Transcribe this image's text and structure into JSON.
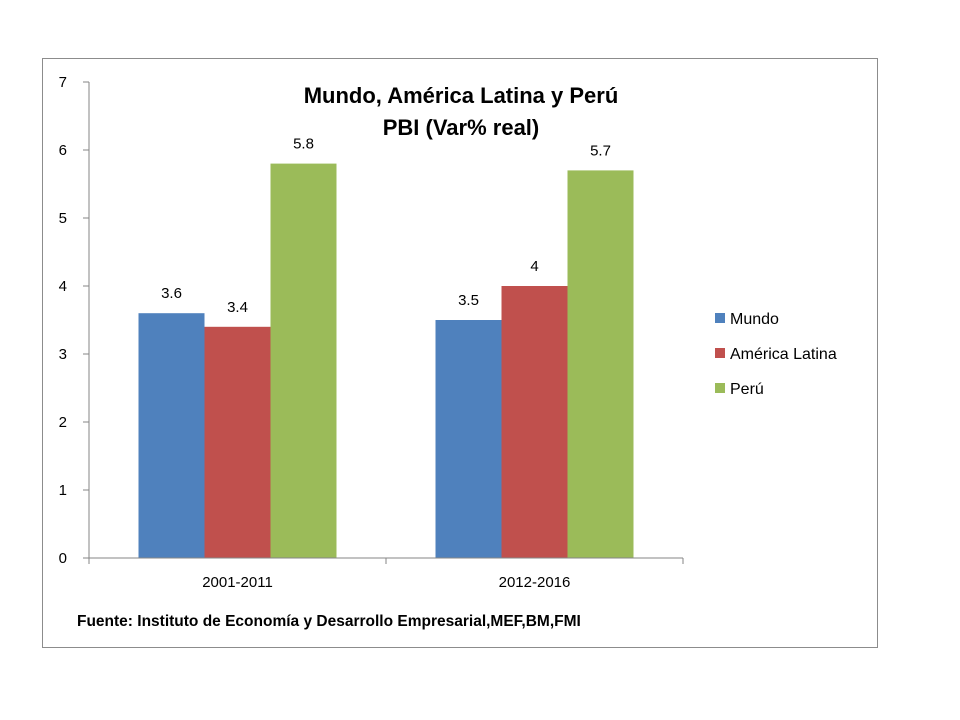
{
  "chart_data": {
    "type": "bar",
    "title": "Mundo, América Latina y Perú",
    "subtitle": "PBI (Var% real)",
    "categories": [
      "2001-2011",
      "2012-2016"
    ],
    "series": [
      {
        "name": "Mundo",
        "values": [
          3.6,
          3.5
        ],
        "color": "#4f81bd"
      },
      {
        "name": "América Latina",
        "values": [
          3.4,
          4
        ],
        "color": "#c0504d"
      },
      {
        "name": "Perú",
        "values": [
          5.8,
          5.7
        ],
        "color": "#9bbb59"
      }
    ],
    "data_labels": [
      [
        "3.6",
        "3.5"
      ],
      [
        "3.4",
        "4"
      ],
      [
        "5.8",
        "5.7"
      ]
    ],
    "ylim": [
      0,
      7
    ],
    "yticks": [
      0,
      1,
      2,
      3,
      4,
      5,
      6,
      7
    ],
    "grid": false,
    "legend_position": "right",
    "source": "Fuente: Instituto de Economía y Desarrollo Empresarial,MEF,BM,FMI"
  }
}
